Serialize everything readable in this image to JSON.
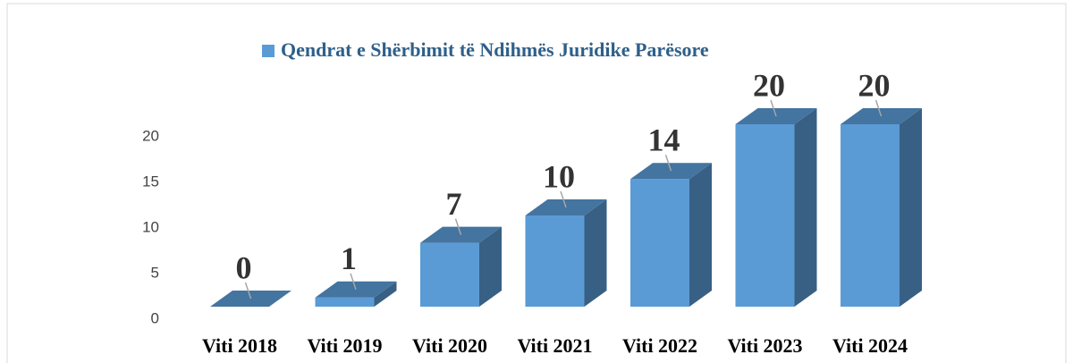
{
  "chart_data": {
    "type": "bar3d",
    "categories": [
      "Viti 2018",
      "Viti 2019",
      "Viti 2020",
      "Viti 2021",
      "Viti 2022",
      "Viti 2023",
      "Viti 2024"
    ],
    "series": [
      {
        "name": "Qendrat e Shërbimit të Ndihmës Juridike Parësore",
        "color": "#5b9bd5",
        "values": [
          0,
          1,
          7,
          10,
          14,
          20,
          20
        ]
      }
    ],
    "ylim": [
      0,
      20
    ],
    "yticks": [
      0,
      5,
      10,
      15,
      20
    ],
    "grid": false,
    "legend": "top"
  }
}
